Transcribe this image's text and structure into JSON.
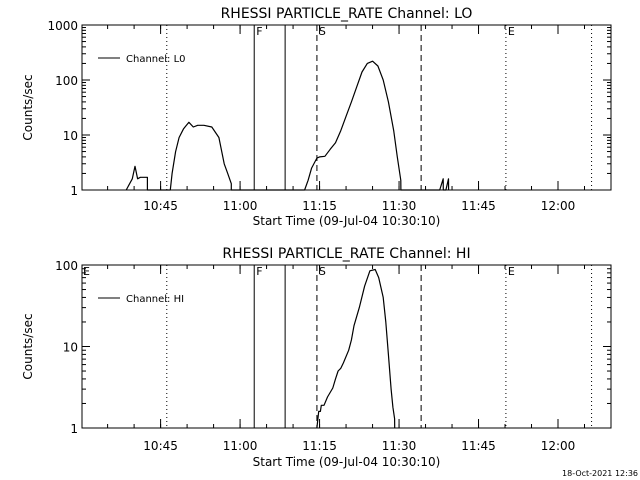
{
  "footer": "18-Oct-2021 12:36",
  "chart_data": [
    {
      "type": "line",
      "title": "RHESSI PARTICLE_RATE Channel: LO",
      "xlabel": "Start Time (09-Jul-04 10:30:10)",
      "ylabel": "Counts/sec",
      "yscale": "log",
      "ylim": [
        1,
        1000
      ],
      "ytick_values": [
        1,
        10,
        100,
        1000
      ],
      "ytick_labels": [
        "1",
        "10",
        "100",
        "1000"
      ],
      "xlim": [
        "10:30:10",
        "12:10:00"
      ],
      "xtick_labels": [
        "10:45",
        "11:00",
        "11:15",
        "11:30",
        "11:45",
        "12:00"
      ],
      "legend": {
        "label": "Channel: L0",
        "placement": "top-left"
      },
      "series": [
        {
          "name": "Channel: L0",
          "x": [
            "10:38:30",
            "10:39:40",
            "10:40:10",
            "10:40:40",
            "10:41:10",
            "10:42:30",
            "10:42:31",
            "10:46:50",
            "10:47:10",
            "10:47:50",
            "10:48:30",
            "10:49:20",
            "10:50:20",
            "10:51:10",
            "10:52:00",
            "10:53:10",
            "10:54:40",
            "10:56:00",
            "10:57:00",
            "10:57:40",
            "10:58:20",
            "10:58:21",
            "11:12:10",
            "11:12:50",
            "11:13:30",
            "11:14:00",
            "11:14:30",
            "11:15:00",
            "11:16:00",
            "11:17:00",
            "11:18:00",
            "11:19:00",
            "11:20:00",
            "11:21:00",
            "11:22:00",
            "11:23:00",
            "11:24:00",
            "11:25:00",
            "11:26:00",
            "11:27:00",
            "11:28:00",
            "11:29:00",
            "11:29:40",
            "11:30:20",
            "11:30:21",
            "11:37:40",
            "11:38:20",
            "11:38:21",
            "11:38:50",
            "11:39:20",
            "11:39:21"
          ],
          "y": [
            1,
            1.6,
            2.7,
            1.6,
            1.7,
            1.7,
            1,
            1,
            2,
            5,
            9,
            13,
            17,
            14,
            15,
            15,
            14,
            9,
            3,
            2,
            1.3,
            1,
            1,
            1.5,
            2.5,
            3.1,
            3.8,
            4,
            4.1,
            5.5,
            7.2,
            12,
            22,
            40,
            75,
            140,
            200,
            220,
            180,
            100,
            40,
            12,
            4,
            1.5,
            1,
            1,
            1.6,
            1,
            1,
            1.6,
            1
          ]
        }
      ],
      "vlines": [
        {
          "x": "10:46:10",
          "label": "",
          "style": "dotted"
        },
        {
          "x": "11:02:40",
          "label": "F",
          "style": "solid"
        },
        {
          "x": "11:08:30",
          "label": "",
          "style": "solid"
        },
        {
          "x": "11:14:30",
          "label": "S",
          "style": "dashed"
        },
        {
          "x": "11:34:10",
          "label": "",
          "style": "dashed"
        },
        {
          "x": "11:50:10",
          "label": "E",
          "style": "dotted"
        },
        {
          "x": "12:06:20",
          "label": "",
          "style": "dotted"
        }
      ]
    },
    {
      "type": "line",
      "title": "RHESSI PARTICLE_RATE Channel: HI",
      "xlabel": "Start Time (09-Jul-04 10:30:10)",
      "ylabel": "Counts/sec",
      "yscale": "log",
      "ylim": [
        1,
        100
      ],
      "ytick_values": [
        1,
        10,
        100
      ],
      "ytick_labels": [
        "1",
        "10",
        "100"
      ],
      "xlim": [
        "10:30:10",
        "12:10:00"
      ],
      "xtick_labels": [
        "10:45",
        "11:00",
        "11:15",
        "11:30",
        "11:45",
        "12:00"
      ],
      "legend": {
        "label": "Channel: HI",
        "placement": "top-left"
      },
      "corner_label": "E",
      "series": [
        {
          "name": "Channel: HI",
          "x": [
            "11:14:30",
            "11:14:50",
            "11:15:10",
            "11:15:20",
            "11:15:50",
            "11:16:30",
            "11:17:30",
            "11:18:00",
            "11:18:30",
            "11:19:00",
            "11:19:30",
            "11:20:30",
            "11:21:00",
            "11:21:30",
            "11:22:30",
            "11:23:30",
            "11:24:30",
            "11:25:30",
            "11:26:10",
            "11:27:00",
            "11:27:30",
            "11:28:00",
            "11:28:30",
            "11:28:50",
            "11:29:10",
            "11:29:11"
          ],
          "y": [
            1,
            1.6,
            1.6,
            1.9,
            1.9,
            2.4,
            3.1,
            4,
            5,
            5.4,
            6.3,
            9,
            12,
            18,
            30,
            55,
            85,
            88,
            70,
            40,
            20,
            8,
            3,
            1.8,
            1.3,
            1
          ]
        }
      ],
      "vlines": [
        {
          "x": "10:46:10",
          "label": "",
          "style": "dotted"
        },
        {
          "x": "11:02:40",
          "label": "F",
          "style": "solid"
        },
        {
          "x": "11:08:30",
          "label": "",
          "style": "solid"
        },
        {
          "x": "11:14:30",
          "label": "S",
          "style": "dashed"
        },
        {
          "x": "11:34:10",
          "label": "",
          "style": "dashed"
        },
        {
          "x": "11:50:10",
          "label": "E",
          "style": "dotted"
        },
        {
          "x": "12:06:20",
          "label": "",
          "style": "dotted"
        }
      ]
    }
  ]
}
